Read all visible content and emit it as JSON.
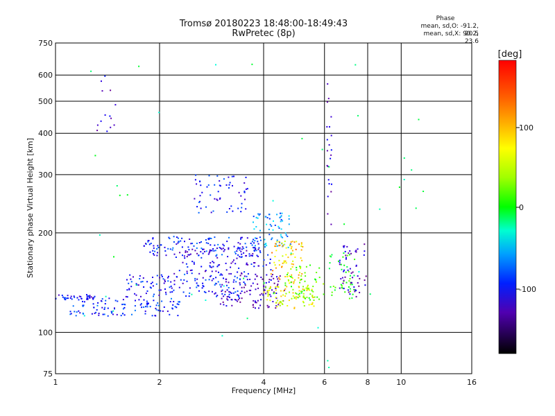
{
  "header": {
    "title": "Tromsø 20180223 18:48:00-18:49:43",
    "subtitle": "RwPretec (8p)"
  },
  "phase_box": {
    "heading": "Phase",
    "line1": "mean, sd,O: -91.2, 20.5",
    "line2": "mean, sd,X:  90.2, 23.6"
  },
  "colorbar": {
    "unit": "[deg]",
    "ticks": [
      "100",
      "0",
      "-100"
    ]
  },
  "chart_data": {
    "type": "scatter",
    "xlabel": "Frequency [MHz]",
    "ylabel": "Stationary phase Virtual Height [km]",
    "xscale": "log",
    "yscale": "log",
    "xlim": [
      1,
      16
    ],
    "ylim": [
      75,
      750
    ],
    "x_ticks": [
      "1",
      "2",
      "4",
      "6",
      "8",
      "10",
      "16"
    ],
    "x_tick_values": [
      1,
      2,
      4,
      6,
      8,
      10,
      16
    ],
    "x_grid_values": [
      2,
      4,
      6,
      8,
      10
    ],
    "y_ticks": [
      "75",
      "100",
      "200",
      "300",
      "400",
      "500",
      "600",
      "750"
    ],
    "y_tick_values": [
      75,
      100,
      200,
      300,
      400,
      500,
      600,
      750
    ],
    "y_grid_values": [
      100,
      200,
      300,
      400,
      500,
      600
    ],
    "color_range": [
      -180,
      180
    ],
    "grid": true,
    "series": [
      {
        "clusters": [
          {
            "x": [
              1.0,
              1.3
            ],
            "y": [
              125,
              130
            ],
            "n": 40,
            "phase": -110
          },
          {
            "x": [
              1.1,
              2.3
            ],
            "y": [
              112,
              127
            ],
            "n": 110,
            "phase": -100
          },
          {
            "x": [
              1.6,
              3.6
            ],
            "y": [
              128,
              150
            ],
            "n": 140,
            "phase": -105
          },
          {
            "x": [
              1.8,
              4.0
            ],
            "y": [
              170,
              195
            ],
            "n": 130,
            "phase": -100
          },
          {
            "x": [
              2.2,
              4.2
            ],
            "y": [
              150,
              180
            ],
            "n": 110,
            "phase": -120
          },
          {
            "x": [
              2.5,
              3.6
            ],
            "y": [
              230,
              300
            ],
            "n": 60,
            "phase": -105
          },
          {
            "x": [
              3.0,
              4.6
            ],
            "y": [
              118,
              150
            ],
            "n": 110,
            "phase": -135
          },
          {
            "x": [
              3.7,
              4.8
            ],
            "y": [
              180,
              230
            ],
            "n": 70,
            "phase": -70
          },
          {
            "x": [
              4.0,
              5.6
            ],
            "y": [
              118,
              138
            ],
            "n": 90,
            "phase": 100
          },
          {
            "x": [
              4.2,
              5.2
            ],
            "y": [
              140,
              190
            ],
            "n": 80,
            "phase": 120
          },
          {
            "x": [
              4.6,
              6.0
            ],
            "y": [
              125,
              160
            ],
            "n": 50,
            "phase": 60
          },
          {
            "x": [
              6.2,
              7.4
            ],
            "y": [
              125,
              175
            ],
            "n": 45,
            "phase": 40
          },
          {
            "x": [
              6.6,
              8.0
            ],
            "y": [
              128,
              185
            ],
            "n": 55,
            "phase": -135
          },
          {
            "x": [
              6.1,
              6.3
            ],
            "y": [
              200,
              600
            ],
            "n": 22,
            "phase": -135
          },
          {
            "x": [
              1.3,
              1.5
            ],
            "y": [
              400,
              620
            ],
            "n": 14,
            "phase": -130
          },
          {
            "x": [
              1.0,
              12.0
            ],
            "y": [
              78,
              650
            ],
            "n": 45,
            "phase": 0
          }
        ]
      }
    ]
  }
}
